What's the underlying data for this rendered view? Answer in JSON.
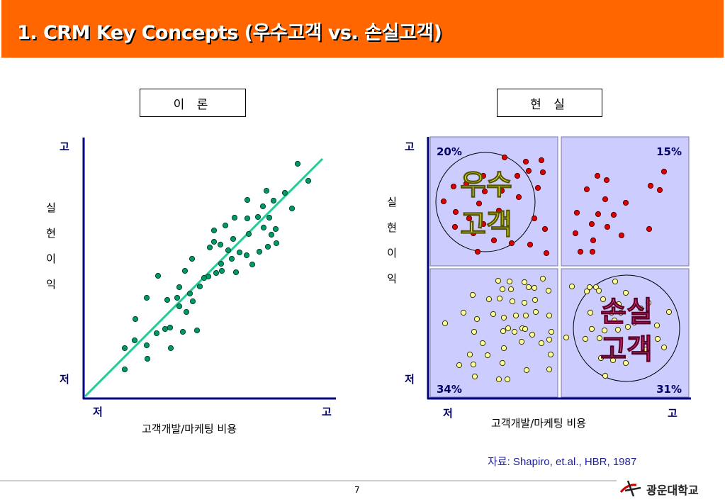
{
  "header": {
    "title": "1. CRM Key Concepts (우수고객 vs. 손실고객)"
  },
  "left_panel": {
    "label": "이 론",
    "y_high": "고",
    "y_low": "저",
    "x_low": "저",
    "x_high": "고",
    "y_axis_chars": [
      "실",
      "현",
      "이",
      "익"
    ],
    "x_axis_label": "고객개발/마케팅 비용"
  },
  "right_panel": {
    "label": "현 실",
    "y_high": "고",
    "y_low": "저",
    "x_low": "저",
    "x_high": "고",
    "y_axis_chars": [
      "실",
      "현",
      "이",
      "익"
    ],
    "x_axis_label": "고객개발/마케팅 비용",
    "quadrant_pcts": {
      "top_left": "20%",
      "top_right": "15%",
      "bottom_left": "34%",
      "bottom_right": "31%"
    },
    "callout_good": [
      "우수",
      "고객"
    ],
    "callout_loss": [
      "손실",
      "고객"
    ]
  },
  "footer": {
    "source": "자료: Shapiro, et.al., HBR, 1987",
    "page": "7",
    "logo_text": "광운대학교"
  },
  "colors": {
    "header": "#ff6600",
    "axis": "#00007f",
    "teal_point": "#009966",
    "regression_line": "#22cc99",
    "quadrant_fill": "#ccccff",
    "red_point": "#dd0000",
    "yellow_point": "#ffff99",
    "good_callout": "#ffff33",
    "loss_callout": "#ff3399"
  }
}
